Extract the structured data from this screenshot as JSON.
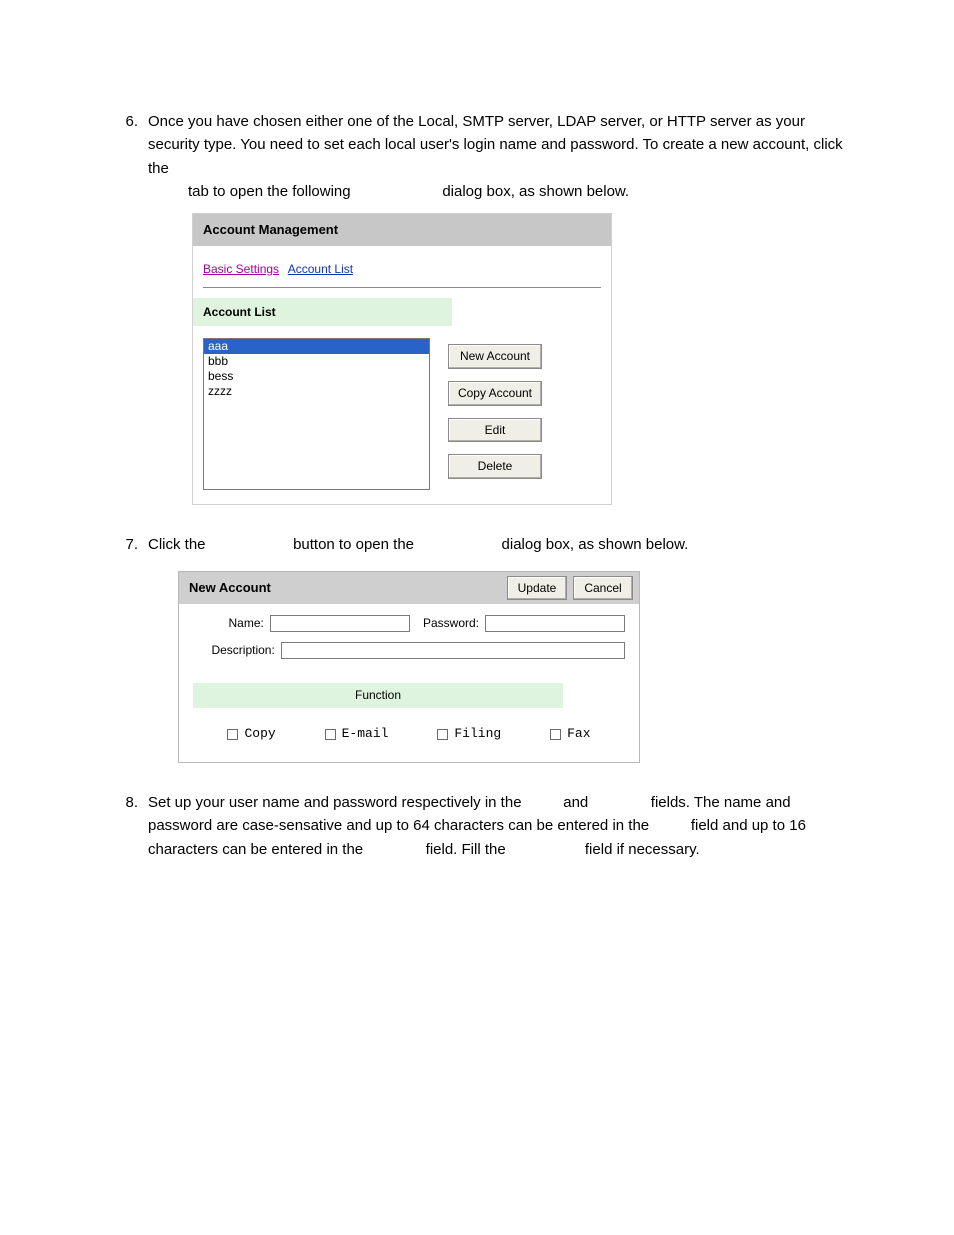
{
  "steps": {
    "s6": {
      "num": "6.",
      "text_a": "Once you have chosen either one of the Local, SMTP server, LDAP server, or HTTP server as your security type.   You need to set each local user's login name and password.   To create a new account, click the",
      "text_b": "tab to open the following",
      "text_c": "dialog box, as shown below."
    },
    "s7": {
      "num": "7.",
      "text_a": "Click the",
      "text_b": "button to open the",
      "text_c": "dialog box, as shown below."
    },
    "s8": {
      "num": "8.",
      "text_a": "Set up your user name and password respectively in the",
      "text_b": "and",
      "text_c": "fields.   The name and password are case-sensative and up to 64 characters can be entered in the",
      "text_d": "field and up to 16 characters can be entered in the",
      "text_e": "field.   Fill the",
      "text_f": "field if necessary."
    }
  },
  "acct_mgmt": {
    "title": "Account Management",
    "tab_basic": "Basic Settings",
    "tab_list": "Account List",
    "subheader": "Account List",
    "items": [
      "aaa",
      "bbb",
      "bess",
      "zzzz"
    ],
    "selected_index": 0,
    "btn_new": "New Account",
    "btn_copy": "Copy Account",
    "btn_edit": "Edit",
    "btn_delete": "Delete"
  },
  "new_acct": {
    "title": "New Account",
    "btn_update": "Update",
    "btn_cancel": "Cancel",
    "lbl_name": "Name:",
    "lbl_password": "Password:",
    "lbl_desc": "Description:",
    "func_header": "Function",
    "func_copy": "Copy",
    "func_email": "E-mail",
    "func_filing": "Filing",
    "func_fax": "Fax"
  },
  "colors": {
    "header_gray": "#c7c7c7",
    "pale_green": "#dff4df",
    "sel_blue": "#2a63c8",
    "btn_face": "#efefe7",
    "link_purple": "#a000a0",
    "link_blue": "#1030c0"
  }
}
